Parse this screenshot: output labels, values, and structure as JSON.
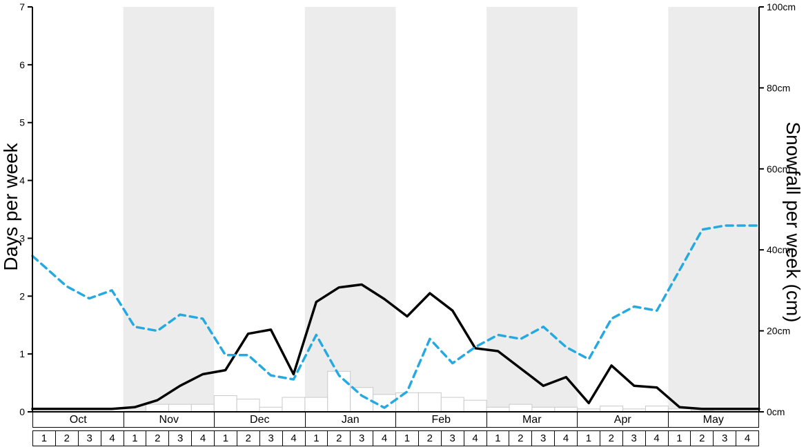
{
  "chart_data": {
    "type": "line",
    "title": "",
    "ylabel_left": "Days per week",
    "ylabel_right": "Snowfall per week (cm)",
    "left_axis": {
      "min": 0,
      "max": 7,
      "ticks": [
        "0",
        "1",
        "2",
        "3",
        "4",
        "5",
        "6",
        "7"
      ],
      "tick_values": [
        0,
        1,
        2,
        3,
        4,
        5,
        6,
        7
      ]
    },
    "right_axis": {
      "min": 0,
      "max": 100,
      "ticks": [
        "0cm",
        "20cm",
        "40cm",
        "60cm",
        "80cm",
        "100cm"
      ],
      "tick_values": [
        0,
        20,
        40,
        60,
        80,
        100
      ]
    },
    "months": [
      "Oct",
      "Nov",
      "Dec",
      "Jan",
      "Feb",
      "Mar",
      "Apr",
      "May"
    ],
    "week_labels": [
      "1",
      "2",
      "3",
      "4"
    ],
    "shaded_month_indices": [
      1,
      3,
      5,
      7
    ],
    "band_color": "#ececec",
    "legend_position": "none",
    "grid": false,
    "series": [
      {
        "name": "snow-days-per-week",
        "type": "line",
        "line_style": "solid",
        "color": "#000000",
        "axis": "left",
        "values": [
          0.05,
          0.05,
          0.05,
          0.05,
          0.08,
          0.2,
          0.45,
          0.65,
          0.72,
          1.35,
          1.42,
          0.65,
          1.9,
          2.15,
          2.2,
          1.95,
          1.65,
          2.05,
          1.75,
          1.1,
          1.05,
          0.75,
          0.45,
          0.6,
          0.15,
          0.8,
          0.45,
          0.42,
          0.08,
          0.05,
          0.05,
          0.05
        ]
      },
      {
        "name": "snowfall-per-week-cm",
        "type": "line",
        "line_style": "dashed",
        "color": "#26a9e0",
        "axis": "right",
        "values": [
          36,
          31,
          28,
          30,
          21,
          20,
          24,
          23,
          14,
          14,
          9,
          8,
          19,
          9,
          4,
          1,
          5,
          18,
          12,
          16,
          19,
          18,
          21,
          16,
          13,
          23,
          26,
          25,
          35,
          45,
          46,
          46
        ]
      },
      {
        "name": "weekly-snowfall-bars",
        "type": "bar",
        "fill": "#ffffff",
        "border_color": "#c9c9c9",
        "axis": "left",
        "values": [
          0,
          0,
          0,
          0,
          0,
          0.13,
          0.13,
          0.13,
          0.28,
          0.22,
          0.08,
          0.25,
          0.25,
          0.7,
          0.42,
          0.3,
          0.33,
          0.33,
          0.25,
          0.2,
          0.08,
          0.13,
          0.08,
          0.08,
          0.05,
          0.1,
          0.05,
          0.1,
          0.05,
          0.02,
          0,
          0
        ]
      }
    ]
  }
}
